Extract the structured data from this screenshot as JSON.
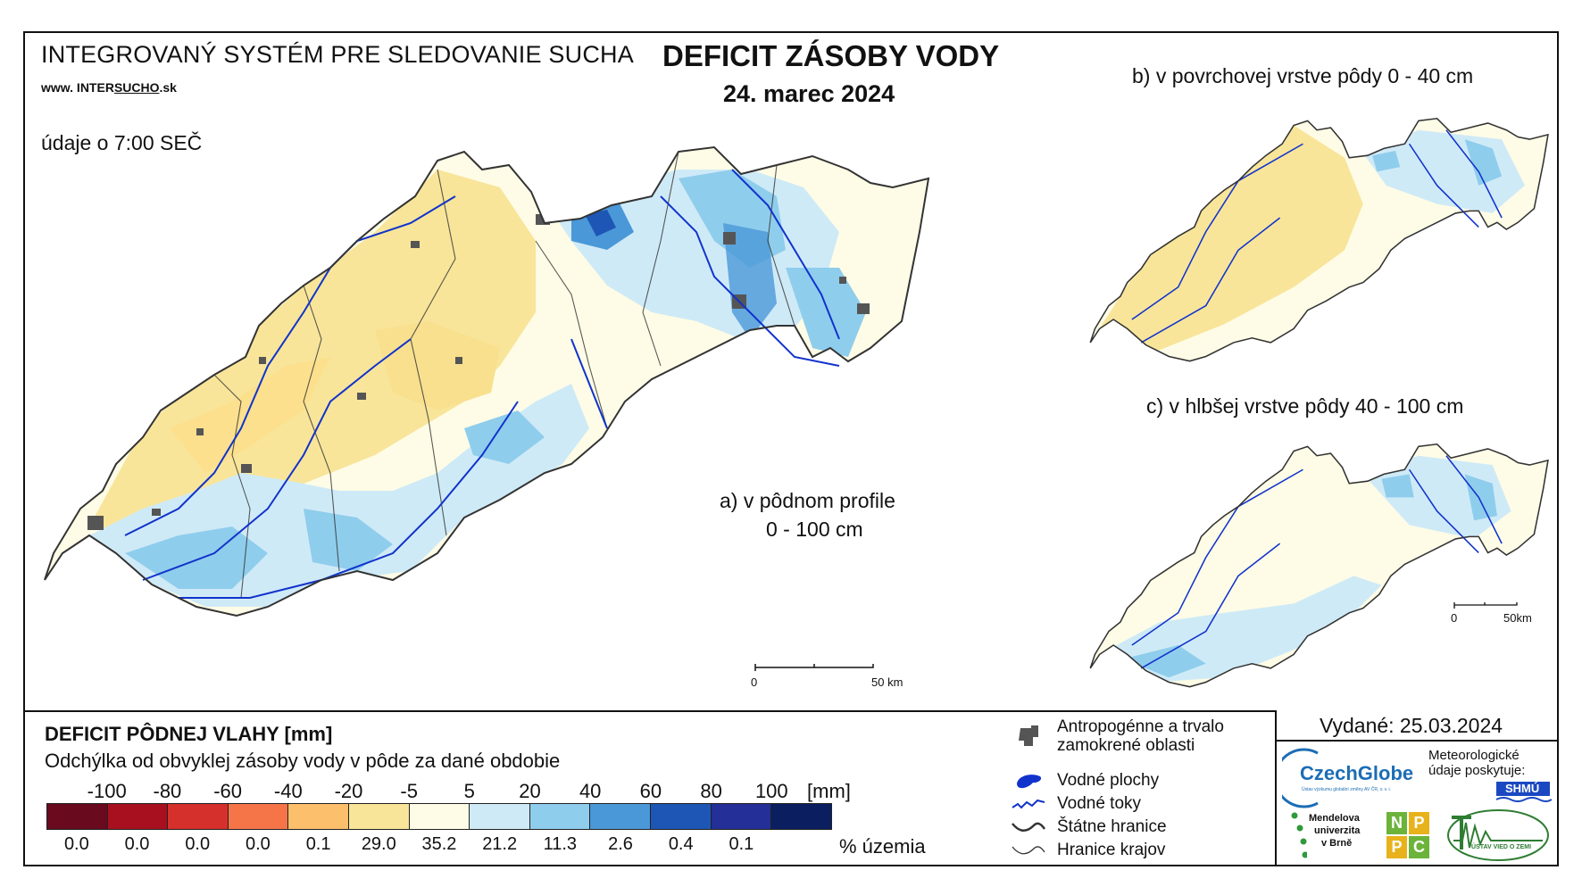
{
  "header": {
    "system_title": "INTEGROVANÝ SYSTÉM PRE SLEDOVANIE SUCHA",
    "website_prefix": "www. INTER",
    "website_highlight": "SUCHO",
    "website_suffix": ".sk",
    "data_time": "údaje o 7:00 SEČ",
    "title": "DEFICIT ZÁSOBY VODY",
    "date": "24. marec 2024"
  },
  "maps": {
    "a_label_line1": "a) v pôdnom profile",
    "a_label_line2": "0 - 100 cm",
    "b_label": "b) v povrchovej vrstve pôdy 0 - 40 cm",
    "c_label": "c) v hlbšej vrstve pôdy 40 - 100 cm",
    "scale_main_zero": "0",
    "scale_main_end": "50 km",
    "scale_small_zero": "0",
    "scale_small_end": "50km"
  },
  "legend": {
    "title": "DEFICIT PÔDNEJ VLAHY [mm]",
    "subtitle": "Odchýlka od obvyklej zásoby vody v pôde za dané obdobie",
    "ticks": [
      "-100",
      "-80",
      "-60",
      "-40",
      "-20",
      "-5",
      "5",
      "20",
      "40",
      "60",
      "80",
      "100"
    ],
    "unit": "[mm]",
    "colors": [
      "#6a0a1e",
      "#a8101f",
      "#d6302c",
      "#f57548",
      "#fcbf6b",
      "#f8e59a",
      "#fefce6",
      "#cfeaf7",
      "#8fcdec",
      "#4a98d8",
      "#1e56b6",
      "#242f98",
      "#0b1f60"
    ],
    "percentages": [
      "0.0",
      "0.0",
      "0.0",
      "0.0",
      "0.1",
      "29.0",
      "35.2",
      "21.2",
      "11.3",
      "2.6",
      "0.4",
      "0.1",
      ""
    ],
    "percent_label": "% územia",
    "symbols": [
      {
        "icon": "urban-area-icon",
        "label_line1": "Antropogénne a trvalo",
        "label_line2": "zamokrené oblasti"
      },
      {
        "icon": "water-body-icon",
        "label_line1": "Vodné plochy",
        "label_line2": ""
      },
      {
        "icon": "river-icon",
        "label_line1": "Vodné toky",
        "label_line2": ""
      },
      {
        "icon": "state-border-icon",
        "label_line1": "Štátne hranice",
        "label_line2": ""
      },
      {
        "icon": "region-border-icon",
        "label_line1": "Hranice krajov",
        "label_line2": ""
      }
    ]
  },
  "issued": "Vydané: 25.03.2024",
  "logos": {
    "czechglobe": "CzechGlobe",
    "czechglobe_sub": "Ústav výzkumu globální změny AV ČR, v. v. i.",
    "meteo_text": "Meteorologické údaje poskytuje:",
    "shmu": "SHMÚ",
    "mendelu_line1": "Mendelova",
    "mendelu_line2": "univerzita",
    "mendelu_line3": "v Brně",
    "nppc_letters": [
      "N",
      "P",
      "P",
      "C"
    ],
    "uvz": "ÚSTAV VIED O ZEMI"
  },
  "colors": {
    "accent_green": "#2e7d32",
    "water_blue": "#1133cc",
    "cg_blue": "#1c6db5",
    "cg_green": "#5aa02c"
  }
}
